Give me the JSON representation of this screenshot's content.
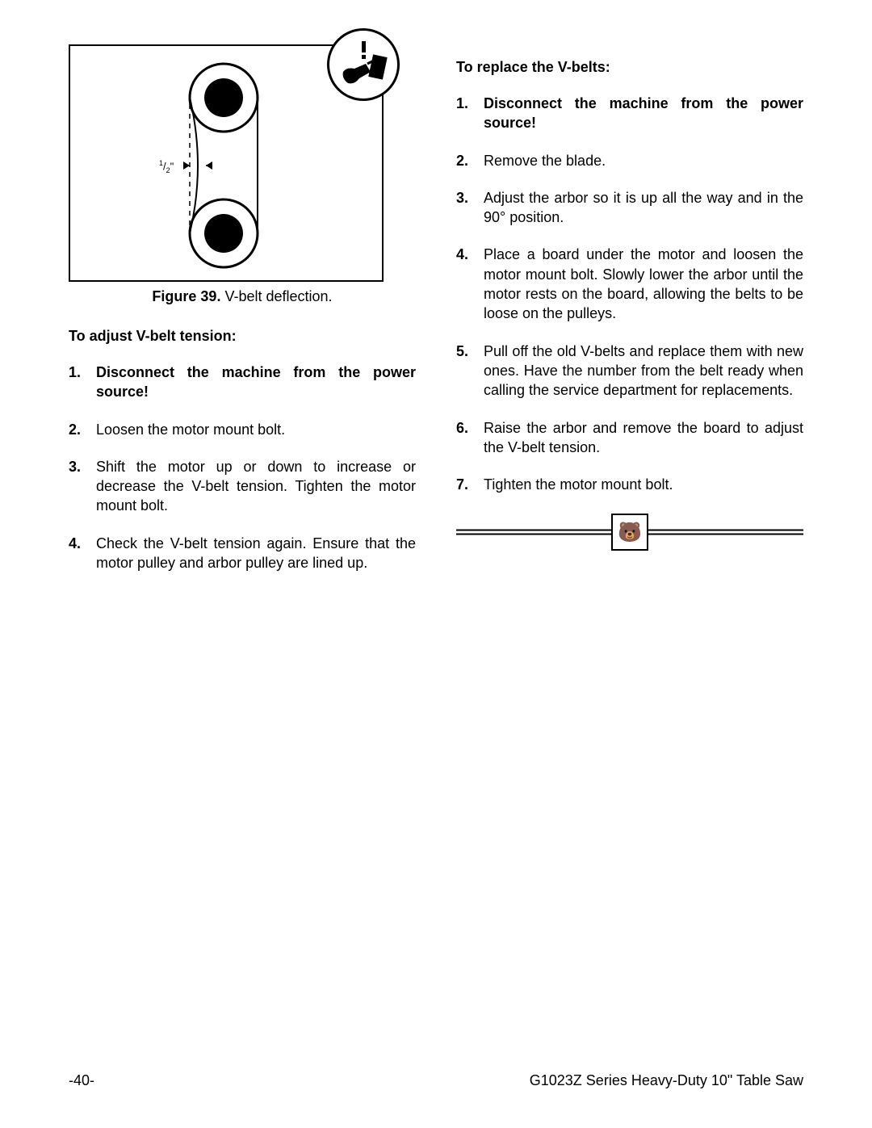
{
  "figure": {
    "label": "Figure 39.",
    "caption": "V-belt deflection.",
    "deflection_label": "½\"",
    "colors": {
      "stroke": "#000000",
      "fill_black": "#000000",
      "bg": "#ffffff"
    }
  },
  "left": {
    "title": "To adjust V-belt tension:",
    "steps": [
      {
        "bold": true,
        "text": "Disconnect the machine from the power source!"
      },
      {
        "bold": false,
        "text": "Loosen the motor mount bolt."
      },
      {
        "bold": false,
        "text": "Shift the motor up or down to increase or decrease the V-belt tension. Tighten the motor mount bolt."
      },
      {
        "bold": false,
        "text": "Check the V-belt tension again. Ensure that the motor pulley and arbor pulley are lined up."
      }
    ]
  },
  "right": {
    "title": "To replace the V-belts:",
    "steps": [
      {
        "bold": true,
        "text": "Disconnect the machine from the power source!"
      },
      {
        "bold": false,
        "text": "Remove the blade."
      },
      {
        "bold": false,
        "text": "Adjust the arbor so it is up all the way and in the 90° position."
      },
      {
        "bold": false,
        "text": "Place a board under the motor and loosen the motor mount bolt. Slowly lower the arbor until the motor rests on the board, allowing the belts to be loose on the pulleys."
      },
      {
        "bold": false,
        "text": "Pull off the old V-belts and replace them with new ones. Have the number from the belt ready when calling the service department for replacements."
      },
      {
        "bold": false,
        "text": "Raise the arbor and remove the board to adjust the V-belt tension."
      },
      {
        "bold": false,
        "text": "Tighten the motor mount bolt."
      }
    ]
  },
  "emblem_glyph": "🐻",
  "footer": {
    "page": "-40-",
    "doc": "G1023Z Series Heavy-Duty 10\" Table Saw"
  }
}
